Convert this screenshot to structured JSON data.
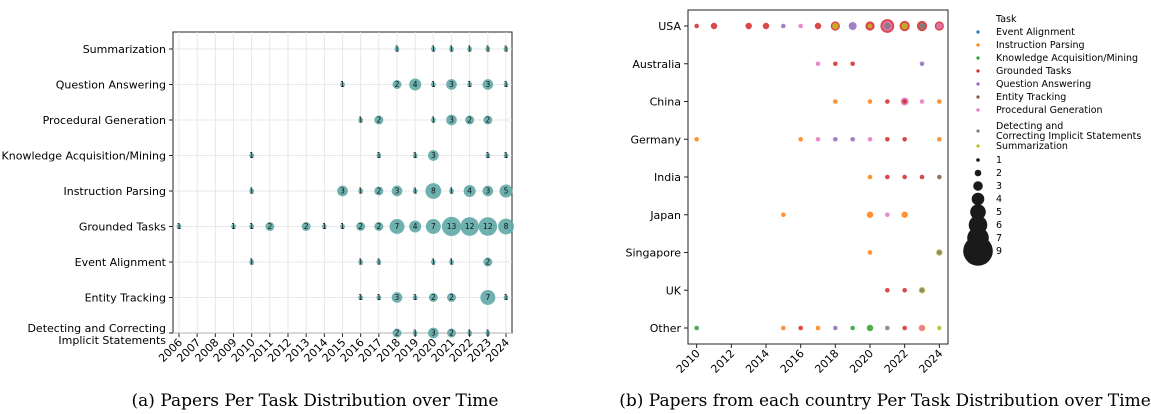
{
  "chart_data": [
    {
      "type": "scatter",
      "panel_label": "(a) Papers Per Task Distribution over Time",
      "categories_y": [
        "Summarization",
        "Question Answering",
        "Procedural Generation",
        "Knowledge Acquisition/Mining",
        "Instruction Parsing",
        "Grounded Tasks",
        "Event Alignment",
        "Entity Tracking",
        "Detecting and Correcting Implicit Statements"
      ],
      "x_ticks": [
        "2006",
        "2007",
        "2008",
        "2009",
        "2010",
        "2011",
        "2012",
        "2013",
        "2014",
        "2015",
        "2016",
        "2017",
        "2018",
        "2019",
        "2020",
        "2021",
        "2022",
        "2023",
        "2024"
      ],
      "grid": true,
      "marker_color": "#5fa9a6",
      "points": [
        {
          "task": "Summarization",
          "year": "2018",
          "value": 1
        },
        {
          "task": "Summarization",
          "year": "2020",
          "value": 1
        },
        {
          "task": "Summarization",
          "year": "2021",
          "value": 1
        },
        {
          "task": "Summarization",
          "year": "2022",
          "value": 1
        },
        {
          "task": "Summarization",
          "year": "2023",
          "value": 1
        },
        {
          "task": "Summarization",
          "year": "2024",
          "value": 1
        },
        {
          "task": "Question Answering",
          "year": "2015",
          "value": 1
        },
        {
          "task": "Question Answering",
          "year": "2018",
          "value": 2
        },
        {
          "task": "Question Answering",
          "year": "2019",
          "value": 4
        },
        {
          "task": "Question Answering",
          "year": "2020",
          "value": 1
        },
        {
          "task": "Question Answering",
          "year": "2021",
          "value": 3
        },
        {
          "task": "Question Answering",
          "year": "2022",
          "value": 1
        },
        {
          "task": "Question Answering",
          "year": "2023",
          "value": 3
        },
        {
          "task": "Question Answering",
          "year": "2024",
          "value": 1
        },
        {
          "task": "Procedural Generation",
          "year": "2016",
          "value": 1
        },
        {
          "task": "Procedural Generation",
          "year": "2017",
          "value": 2
        },
        {
          "task": "Procedural Generation",
          "year": "2020",
          "value": 1
        },
        {
          "task": "Procedural Generation",
          "year": "2021",
          "value": 3
        },
        {
          "task": "Procedural Generation",
          "year": "2022",
          "value": 2
        },
        {
          "task": "Procedural Generation",
          "year": "2023",
          "value": 2
        },
        {
          "task": "Knowledge Acquisition/Mining",
          "year": "2010",
          "value": 1
        },
        {
          "task": "Knowledge Acquisition/Mining",
          "year": "2017",
          "value": 1
        },
        {
          "task": "Knowledge Acquisition/Mining",
          "year": "2019",
          "value": 1
        },
        {
          "task": "Knowledge Acquisition/Mining",
          "year": "2020",
          "value": 3
        },
        {
          "task": "Knowledge Acquisition/Mining",
          "year": "2023",
          "value": 1
        },
        {
          "task": "Knowledge Acquisition/Mining",
          "year": "2024",
          "value": 1
        },
        {
          "task": "Instruction Parsing",
          "year": "2010",
          "value": 1
        },
        {
          "task": "Instruction Parsing",
          "year": "2015",
          "value": 3
        },
        {
          "task": "Instruction Parsing",
          "year": "2016",
          "value": 1
        },
        {
          "task": "Instruction Parsing",
          "year": "2017",
          "value": 2
        },
        {
          "task": "Instruction Parsing",
          "year": "2018",
          "value": 3
        },
        {
          "task": "Instruction Parsing",
          "year": "2019",
          "value": 1
        },
        {
          "task": "Instruction Parsing",
          "year": "2020",
          "value": 8
        },
        {
          "task": "Instruction Parsing",
          "year": "2021",
          "value": 1
        },
        {
          "task": "Instruction Parsing",
          "year": "2022",
          "value": 4
        },
        {
          "task": "Instruction Parsing",
          "year": "2023",
          "value": 3
        },
        {
          "task": "Instruction Parsing",
          "year": "2024",
          "value": 5
        },
        {
          "task": "Grounded Tasks",
          "year": "2006",
          "value": 1
        },
        {
          "task": "Grounded Tasks",
          "year": "2009",
          "value": 1
        },
        {
          "task": "Grounded Tasks",
          "year": "2010",
          "value": 1
        },
        {
          "task": "Grounded Tasks",
          "year": "2011",
          "value": 2
        },
        {
          "task": "Grounded Tasks",
          "year": "2013",
          "value": 2
        },
        {
          "task": "Grounded Tasks",
          "year": "2014",
          "value": 1
        },
        {
          "task": "Grounded Tasks",
          "year": "2015",
          "value": 1
        },
        {
          "task": "Grounded Tasks",
          "year": "2016",
          "value": 2
        },
        {
          "task": "Grounded Tasks",
          "year": "2017",
          "value": 2
        },
        {
          "task": "Grounded Tasks",
          "year": "2018",
          "value": 7
        },
        {
          "task": "Grounded Tasks",
          "year": "2019",
          "value": 4
        },
        {
          "task": "Grounded Tasks",
          "year": "2020",
          "value": 7
        },
        {
          "task": "Grounded Tasks",
          "year": "2021",
          "value": 13
        },
        {
          "task": "Grounded Tasks",
          "year": "2022",
          "value": 12
        },
        {
          "task": "Grounded Tasks",
          "year": "2023",
          "value": 12
        },
        {
          "task": "Grounded Tasks",
          "year": "2024",
          "value": 8
        },
        {
          "task": "Event Alignment",
          "year": "2010",
          "value": 1
        },
        {
          "task": "Event Alignment",
          "year": "2016",
          "value": 1
        },
        {
          "task": "Event Alignment",
          "year": "2017",
          "value": 1
        },
        {
          "task": "Event Alignment",
          "year": "2020",
          "value": 1
        },
        {
          "task": "Event Alignment",
          "year": "2021",
          "value": 1
        },
        {
          "task": "Event Alignment",
          "year": "2023",
          "value": 2
        },
        {
          "task": "Entity Tracking",
          "year": "2016",
          "value": 1
        },
        {
          "task": "Entity Tracking",
          "year": "2017",
          "value": 1
        },
        {
          "task": "Entity Tracking",
          "year": "2018",
          "value": 3
        },
        {
          "task": "Entity Tracking",
          "year": "2019",
          "value": 1
        },
        {
          "task": "Entity Tracking",
          "year": "2020",
          "value": 2
        },
        {
          "task": "Entity Tracking",
          "year": "2021",
          "value": 2
        },
        {
          "task": "Entity Tracking",
          "year": "2023",
          "value": 7
        },
        {
          "task": "Entity Tracking",
          "year": "2024",
          "value": 1
        },
        {
          "task": "Detecting and Correcting Implicit Statements",
          "year": "2018",
          "value": 2
        },
        {
          "task": "Detecting and Correcting Implicit Statements",
          "year": "2019",
          "value": 1
        },
        {
          "task": "Detecting and Correcting Implicit Statements",
          "year": "2020",
          "value": 3
        },
        {
          "task": "Detecting and Correcting Implicit Statements",
          "year": "2021",
          "value": 2
        },
        {
          "task": "Detecting and Correcting Implicit Statements",
          "year": "2022",
          "value": 1
        },
        {
          "task": "Detecting and Correcting Implicit Statements",
          "year": "2023",
          "value": 1
        }
      ]
    },
    {
      "type": "scatter",
      "panel_label": "(b) Papers from each country Per Task Distribution over Time",
      "categories_y": [
        "USA",
        "Australia",
        "China",
        "Germany",
        "India",
        "Japan",
        "Singapore",
        "UK",
        "Other"
      ],
      "x_ticks": [
        "2010",
        "2012",
        "2014",
        "2016",
        "2018",
        "2020",
        "2022",
        "2024"
      ],
      "xlim": [
        2009.5,
        2024.5
      ],
      "grid": false,
      "legend_placement": "right",
      "legend_title": "Task",
      "series": [
        {
          "name": "Event Alignment",
          "color": "#1f77b4"
        },
        {
          "name": "Instruction Parsing",
          "color": "#ff7f0e"
        },
        {
          "name": "Knowledge Acquisition/Mining",
          "color": "#2ca02c"
        },
        {
          "name": "Grounded Tasks",
          "color": "#d62728"
        },
        {
          "name": "Question Answering",
          "color": "#9467bd"
        },
        {
          "name": "Entity Tracking",
          "color": "#8c564b"
        },
        {
          "name": "Procedural Generation",
          "color": "#e377c2"
        },
        {
          "name": "Detecting and Correcting Implicit Statements",
          "color": "#7f7f7f"
        },
        {
          "name": "Summarization",
          "color": "#bcbd22"
        }
      ],
      "size_legend": [
        "1",
        "2",
        "3",
        "4",
        "5",
        "6",
        "7",
        "9"
      ],
      "points": [
        {
          "country": "USA",
          "year": 2010,
          "task": "Grounded Tasks",
          "value": 1
        },
        {
          "country": "USA",
          "year": 2011,
          "task": "Grounded Tasks",
          "value": 2
        },
        {
          "country": "USA",
          "year": 2013,
          "task": "Grounded Tasks",
          "value": 2
        },
        {
          "country": "USA",
          "year": 2014,
          "task": "Grounded Tasks",
          "value": 2
        },
        {
          "country": "USA",
          "year": 2015,
          "task": "Question Answering",
          "value": 1
        },
        {
          "country": "USA",
          "year": 2016,
          "task": "Procedural Generation",
          "value": 1
        },
        {
          "country": "USA",
          "year": 2017,
          "task": "Grounded Tasks",
          "value": 2
        },
        {
          "country": "USA",
          "year": 2018,
          "task": "Grounded Tasks",
          "value": 4
        },
        {
          "country": "USA",
          "year": 2018,
          "task": "Summarization",
          "value": 2
        },
        {
          "country": "USA",
          "year": 2019,
          "task": "Question Answering",
          "value": 3
        },
        {
          "country": "USA",
          "year": 2020,
          "task": "Grounded Tasks",
          "value": 4
        },
        {
          "country": "USA",
          "year": 2020,
          "task": "Summarization",
          "value": 1
        },
        {
          "country": "USA",
          "year": 2021,
          "task": "Grounded Tasks",
          "value": 9
        },
        {
          "country": "USA",
          "year": 2021,
          "task": "Procedural Generation",
          "value": 5
        },
        {
          "country": "USA",
          "year": 2021,
          "task": "Detecting and Correcting Implicit Statements",
          "value": 2
        },
        {
          "country": "USA",
          "year": 2022,
          "task": "Grounded Tasks",
          "value": 5
        },
        {
          "country": "USA",
          "year": 2022,
          "task": "Summarization",
          "value": 2
        },
        {
          "country": "USA",
          "year": 2023,
          "task": "Grounded Tasks",
          "value": 5
        },
        {
          "country": "USA",
          "year": 2023,
          "task": "Detecting and Correcting Implicit Statements",
          "value": 2
        },
        {
          "country": "USA",
          "year": 2024,
          "task": "Grounded Tasks",
          "value": 4
        },
        {
          "country": "USA",
          "year": 2024,
          "task": "Procedural Generation",
          "value": 2
        },
        {
          "country": "Australia",
          "year": 2017,
          "task": "Procedural Generation",
          "value": 1
        },
        {
          "country": "Australia",
          "year": 2018,
          "task": "Grounded Tasks",
          "value": 1
        },
        {
          "country": "Australia",
          "year": 2019,
          "task": "Grounded Tasks",
          "value": 1
        },
        {
          "country": "Australia",
          "year": 2023,
          "task": "Question Answering",
          "value": 1
        },
        {
          "country": "China",
          "year": 2018,
          "task": "Instruction Parsing",
          "value": 1
        },
        {
          "country": "China",
          "year": 2020,
          "task": "Instruction Parsing",
          "value": 1
        },
        {
          "country": "China",
          "year": 2021,
          "task": "Grounded Tasks",
          "value": 1
        },
        {
          "country": "China",
          "year": 2022,
          "task": "Procedural Generation",
          "value": 3
        },
        {
          "country": "China",
          "year": 2022,
          "task": "Grounded Tasks",
          "value": 1
        },
        {
          "country": "China",
          "year": 2023,
          "task": "Procedural Generation",
          "value": 1
        },
        {
          "country": "China",
          "year": 2024,
          "task": "Instruction Parsing",
          "value": 1
        },
        {
          "country": "Germany",
          "year": 2010,
          "task": "Instruction Parsing",
          "value": 1
        },
        {
          "country": "Germany",
          "year": 2016,
          "task": "Instruction Parsing",
          "value": 1
        },
        {
          "country": "Germany",
          "year": 2017,
          "task": "Procedural Generation",
          "value": 1
        },
        {
          "country": "Germany",
          "year": 2018,
          "task": "Question Answering",
          "value": 1
        },
        {
          "country": "Germany",
          "year": 2019,
          "task": "Question Answering",
          "value": 1
        },
        {
          "country": "Germany",
          "year": 2020,
          "task": "Procedural Generation",
          "value": 1
        },
        {
          "country": "Germany",
          "year": 2021,
          "task": "Grounded Tasks",
          "value": 1
        },
        {
          "country": "Germany",
          "year": 2022,
          "task": "Grounded Tasks",
          "value": 1
        },
        {
          "country": "Germany",
          "year": 2024,
          "task": "Instruction Parsing",
          "value": 1
        },
        {
          "country": "India",
          "year": 2020,
          "task": "Instruction Parsing",
          "value": 1
        },
        {
          "country": "India",
          "year": 2021,
          "task": "Grounded Tasks",
          "value": 1
        },
        {
          "country": "India",
          "year": 2022,
          "task": "Grounded Tasks",
          "value": 1
        },
        {
          "country": "India",
          "year": 2023,
          "task": "Grounded Tasks",
          "value": 1
        },
        {
          "country": "India",
          "year": 2024,
          "task": "Entity Tracking",
          "value": 1
        },
        {
          "country": "Japan",
          "year": 2015,
          "task": "Instruction Parsing",
          "value": 1
        },
        {
          "country": "Japan",
          "year": 2020,
          "task": "Instruction Parsing",
          "value": 2
        },
        {
          "country": "Japan",
          "year": 2021,
          "task": "Procedural Generation",
          "value": 1
        },
        {
          "country": "Japan",
          "year": 2022,
          "task": "Instruction Parsing",
          "value": 2
        },
        {
          "country": "Singapore",
          "year": 2020,
          "task": "Instruction Parsing",
          "value": 1
        },
        {
          "country": "Singapore",
          "year": 2024,
          "task": "Summarization",
          "value": 2
        },
        {
          "country": "Singapore",
          "year": 2024,
          "task": "Detecting and Correcting Implicit Statements",
          "value": 1
        },
        {
          "country": "UK",
          "year": 2021,
          "task": "Grounded Tasks",
          "value": 1
        },
        {
          "country": "UK",
          "year": 2022,
          "task": "Grounded Tasks",
          "value": 1
        },
        {
          "country": "UK",
          "year": 2023,
          "task": "Summarization",
          "value": 2
        },
        {
          "country": "UK",
          "year": 2023,
          "task": "Detecting and Correcting Implicit Statements",
          "value": 1
        },
        {
          "country": "Other",
          "year": 2010,
          "task": "Knowledge Acquisition/Mining",
          "value": 1
        },
        {
          "country": "Other",
          "year": 2015,
          "task": "Instruction Parsing",
          "value": 1
        },
        {
          "country": "Other",
          "year": 2016,
          "task": "Grounded Tasks",
          "value": 1
        },
        {
          "country": "Other",
          "year": 2017,
          "task": "Instruction Parsing",
          "value": 1
        },
        {
          "country": "Other",
          "year": 2018,
          "task": "Question Answering",
          "value": 1
        },
        {
          "country": "Other",
          "year": 2019,
          "task": "Knowledge Acquisition/Mining",
          "value": 1
        },
        {
          "country": "Other",
          "year": 2020,
          "task": "Knowledge Acquisition/Mining",
          "value": 2
        },
        {
          "country": "Other",
          "year": 2021,
          "task": "Detecting and Correcting Implicit Statements",
          "value": 1
        },
        {
          "country": "Other",
          "year": 2022,
          "task": "Grounded Tasks",
          "value": 1
        },
        {
          "country": "Other",
          "year": 2023,
          "task": "Instruction Parsing",
          "value": 2
        },
        {
          "country": "Other",
          "year": 2023,
          "task": "Procedural Generation",
          "value": 1
        },
        {
          "country": "Other",
          "year": 2024,
          "task": "Summarization",
          "value": 1
        }
      ]
    }
  ]
}
